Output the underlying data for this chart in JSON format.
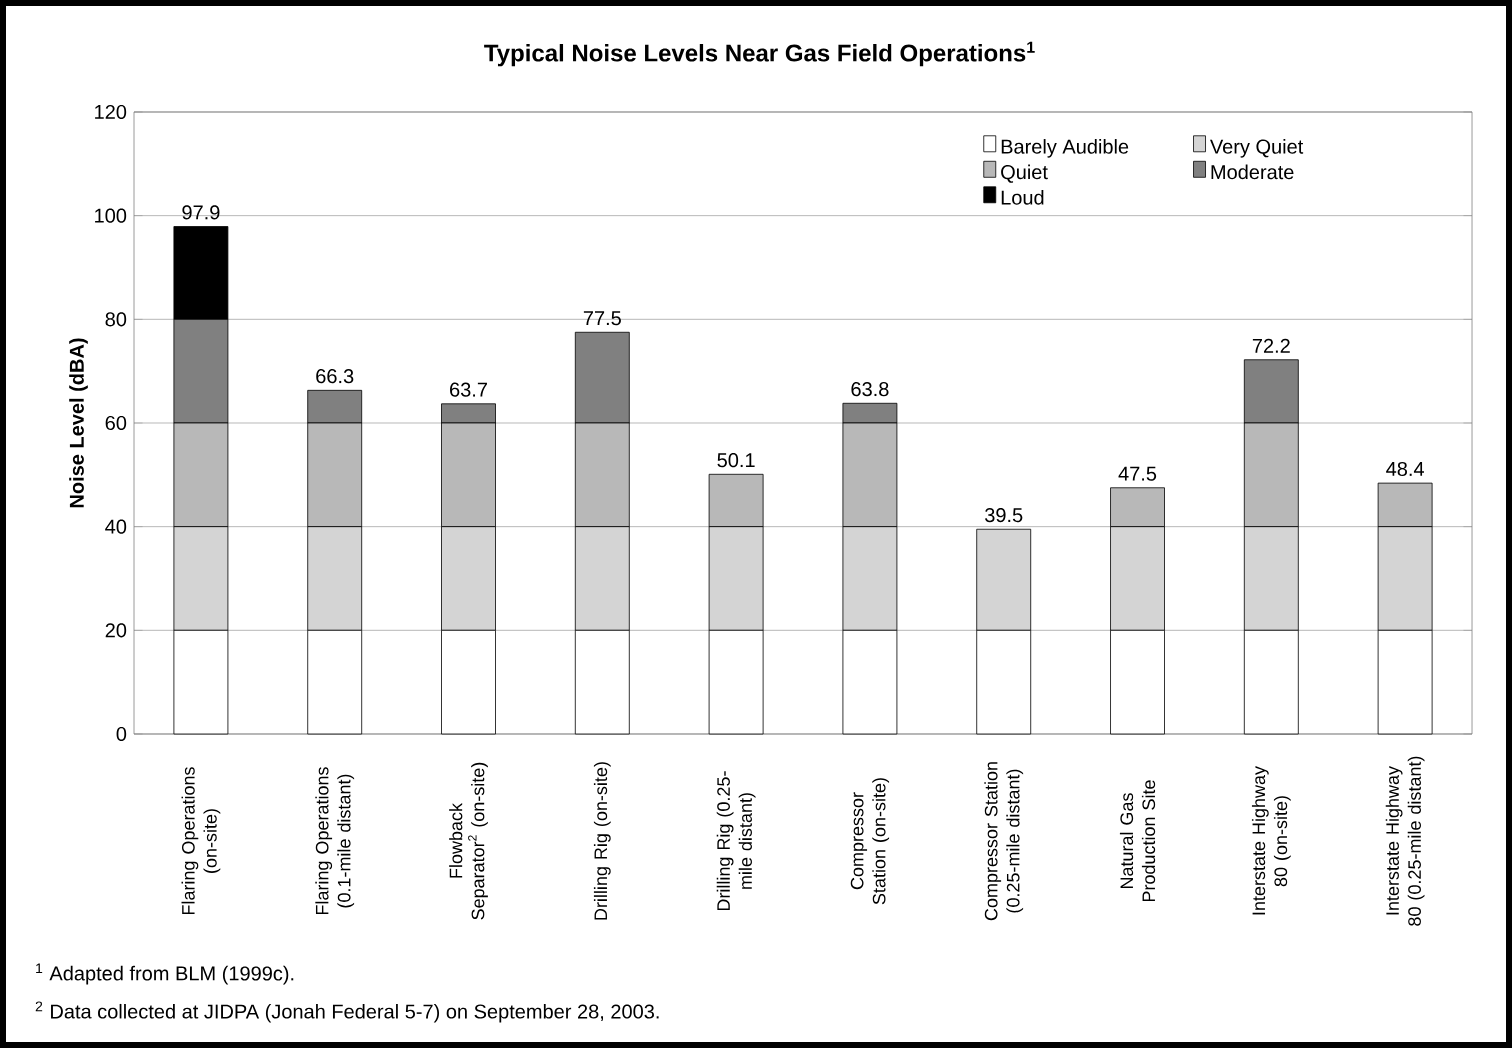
{
  "chart_data": {
    "type": "bar",
    "stacked": true,
    "title": "Typical Noise Levels Near Gas Field Operations$^{1}$",
    "ylabel": "Noise Level  (dBA)",
    "categories": [
      "Flaring Operations (on-site)",
      "Flaring Operations (0.1-mile distant)",
      "Flowback Separator$^{2}$ (on-site)",
      "Drilling Rig (on-site)",
      "Drilling Rig (0.25-mile distant)",
      "Compressor Station (on-site)",
      "Compressor Station (0.25-mile distant)",
      "Natural Gas Production Site",
      "Interstate Highway 80 (on-site)",
      "Interstate Highway 80 (0.25-mile distant)"
    ],
    "series": [
      {
        "name": "Barely Audible",
        "color": "#ffffff",
        "values": [
          20,
          20,
          20,
          20,
          20,
          20,
          20,
          20,
          20,
          20
        ]
      },
      {
        "name": "Very Quiet",
        "color": "#d4d4d4",
        "values": [
          20,
          20,
          20,
          20,
          20,
          20,
          19.5,
          20,
          20,
          20
        ]
      },
      {
        "name": "Quiet",
        "color": "#b8b8b8",
        "values": [
          20,
          20,
          20,
          20,
          10.1,
          20,
          0,
          7.5,
          20,
          8.4
        ]
      },
      {
        "name": "Moderate",
        "color": "#808080",
        "values": [
          20,
          6.3,
          3.7,
          17.5,
          0,
          3.8,
          0,
          0,
          12.2,
          0
        ]
      },
      {
        "name": "Loud",
        "color": "#000000",
        "values": [
          17.9,
          0,
          0,
          0,
          0,
          0,
          0,
          0,
          0,
          0
        ]
      }
    ],
    "totals": [
      "97.9",
      "66.3",
      "63.7",
      "77.5",
      "50.1",
      "63.8",
      "39.5",
      "47.5",
      "72.2",
      "48.4"
    ],
    "ylim": [
      0,
      120
    ],
    "yticks": [
      0,
      20,
      40,
      60,
      80,
      100,
      120
    ],
    "grid": "y",
    "legend": "top right",
    "annotations": [
      "$^{1}$ Adapted from BLM (1999c).",
      "$^{2}$ Data collected at JIDPA (Jonah Federal 5-7) on September 28, 2003."
    ]
  }
}
